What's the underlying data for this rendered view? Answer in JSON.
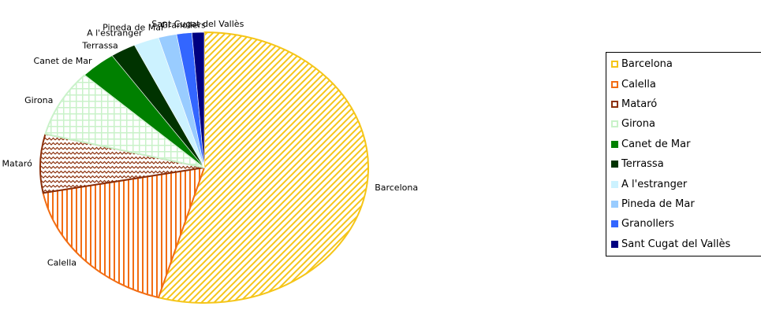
{
  "chart_data": {
    "type": "pie",
    "title": "",
    "legend_position": "right",
    "slices": [
      {
        "label": "Barcelona",
        "value": 54.5,
        "color": "#f5c518",
        "pattern": "diagonal"
      },
      {
        "label": "Calella",
        "value": 17.5,
        "color": "#f26d13",
        "pattern": "vertical"
      },
      {
        "label": "Mataró",
        "value": 7.0,
        "color": "#8b2f0a",
        "pattern": "wave"
      },
      {
        "label": "Girona",
        "value": 8.0,
        "color": "#c9f2c9",
        "pattern": "grid"
      },
      {
        "label": "Canet de Mar",
        "value": 3.5,
        "color": "#008000",
        "pattern": "solid"
      },
      {
        "label": "Terrassa",
        "value": 2.5,
        "color": "#003300",
        "pattern": "solid"
      },
      {
        "label": "A l'estranger",
        "value": 2.5,
        "color": "#ccf2ff",
        "pattern": "solid"
      },
      {
        "label": "Pineda de Mar",
        "value": 1.8,
        "color": "#99ccff",
        "pattern": "solid"
      },
      {
        "label": "Granollers",
        "value": 1.5,
        "color": "#3366ff",
        "pattern": "solid"
      },
      {
        "label": "Sant Cugat del Vallès",
        "value": 1.2,
        "color": "#000080",
        "pattern": "solid"
      }
    ]
  }
}
